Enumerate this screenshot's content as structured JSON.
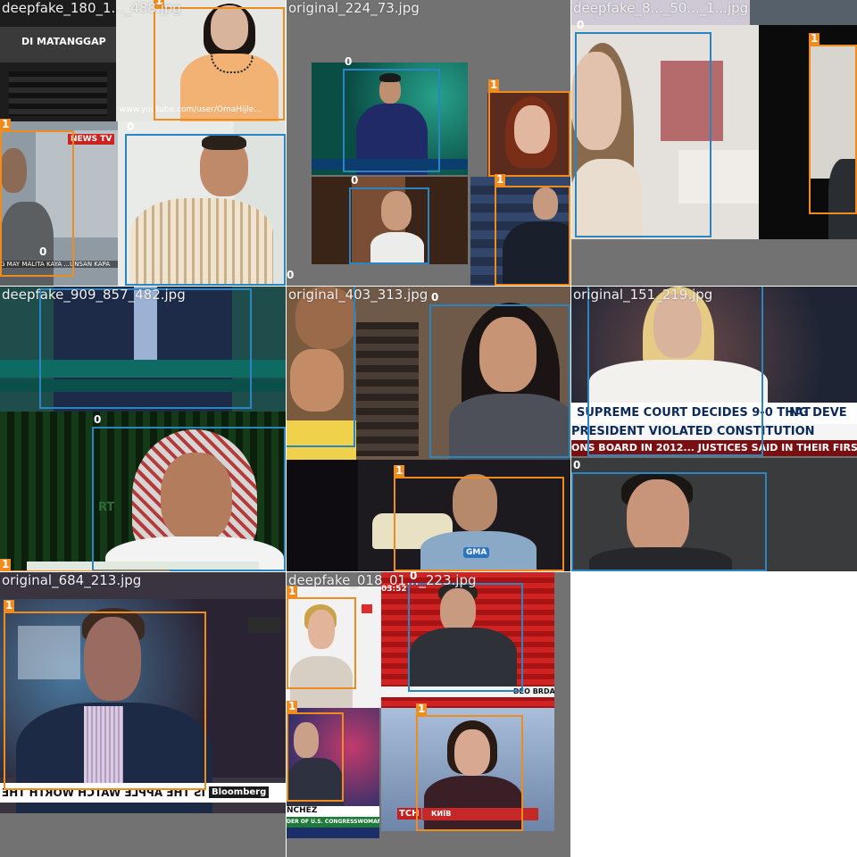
{
  "tiles": [
    {
      "filename": "deepfake_180_1..._488.jpg",
      "labels": {
        "a": "1",
        "b": "0",
        "c": "1",
        "d": "0"
      },
      "texts": {
        "sign": "DI MATANGGAP",
        "url": "www.youtube.com/user/OmaHijle...",
        "logo": "NEWS TV",
        "ticker": "G MAY MALITA KAYA ...UNSAN KAPA"
      }
    },
    {
      "filename": "original_224_73.jpg",
      "labels": {
        "a": "0",
        "b": "1",
        "c": "0",
        "d": "1",
        "e": "0"
      }
    },
    {
      "filename": "deepfake_8..._50..._1...jpg",
      "labels": {
        "a": "0",
        "b": "1"
      }
    },
    {
      "filename": "deepfake_909_857_482.jpg",
      "labels": {
        "a": "0",
        "b": "1"
      },
      "texts": {
        "logo": "RT"
      }
    },
    {
      "filename": "original_403_313.jpg",
      "labels": {
        "a": "0",
        "b": "1"
      },
      "texts": {
        "mic": "GMA"
      }
    },
    {
      "filename": "original_151_219.jpg",
      "labels": {
        "a": "0"
      },
      "texts": {
        "headline1": "SUPREME COURT DECIDES 9-0 THAT",
        "headline_right": "NG  DEVE",
        "headline2": "PRESIDENT VIOLATED CONSTITUTION",
        "crawl": "ONS BOARD IN 2012... JUSTICES SAID IN THEIR FIRST-EVE"
      }
    },
    {
      "filename": "original_684_213.jpg",
      "labels": {
        "a": "1"
      },
      "texts": {
        "logo": "Bloomberg",
        "ticker": "IS THE APPLE WATCH WORTH THE HYP"
      }
    },
    {
      "filename": "deepfake_018_01..._223.jpg",
      "labels": {
        "a": "1",
        "b": "0",
        "c": "1",
        "d": "1"
      },
      "texts": {
        "time": "03:52",
        "lower": "DEO BRDA",
        "name": "NCHEZ",
        "sub": "DER OF U.S. CONGRESSWOMAN APPEA",
        "tsn": "ТСН",
        "kyiv": "КИЇВ"
      }
    }
  ],
  "colors": {
    "class0": "#2a86c2",
    "class1": "#f08c1e",
    "tile_bg": "#727272"
  }
}
